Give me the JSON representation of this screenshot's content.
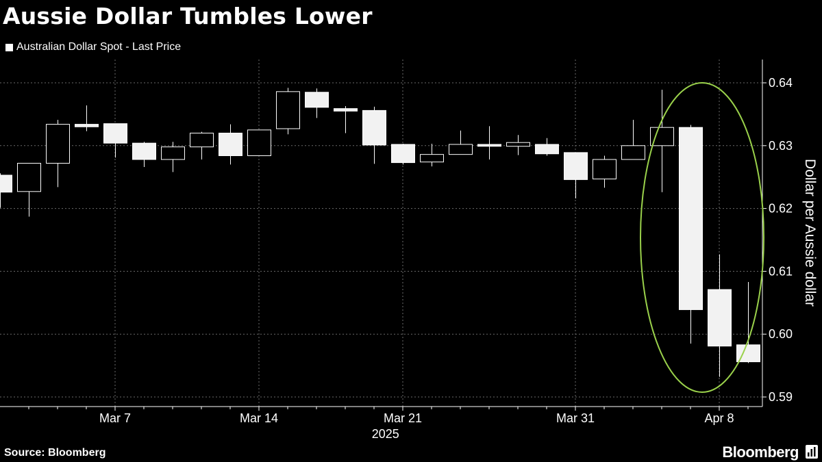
{
  "title": "Aussie Dollar Tumbles Lower",
  "source": "Source: Bloomberg",
  "brand": "Bloomberg",
  "colors": {
    "background": "#000000",
    "candle": "#ffffff",
    "grid": "#6b6b6b",
    "highlight": "#9ad14b"
  },
  "chart_data": {
    "type": "candlestick",
    "title": "Aussie Dollar Tumbles Lower",
    "legend": [
      "Australian Dollar Spot - Last Price"
    ],
    "ylabel": "Dollar per Aussie dollar",
    "ylim": [
      0.59,
      0.64
    ],
    "yticks": [
      "0.64",
      "0.63",
      "0.62",
      "0.61",
      "0.60",
      "0.59"
    ],
    "ytick_values": [
      0.64,
      0.63,
      0.62,
      0.61,
      0.6,
      0.59
    ],
    "xticks": [
      "Mar 7",
      "Mar 14",
      "Mar 21",
      "Mar 31",
      "Apr 8"
    ],
    "xtick_index": [
      4,
      9,
      14,
      20,
      25
    ],
    "xsub": "2025",
    "grid": true,
    "highlight": "ellipse around last three sessions",
    "candles": [
      {
        "o": 0.6253,
        "h": 0.6256,
        "l": 0.6201,
        "c": 0.6226
      },
      {
        "o": 0.6227,
        "h": 0.6272,
        "l": 0.6187,
        "c": 0.6272
      },
      {
        "o": 0.6272,
        "h": 0.6341,
        "l": 0.6234,
        "c": 0.6334
      },
      {
        "o": 0.6334,
        "h": 0.6364,
        "l": 0.6323,
        "c": 0.633
      },
      {
        "o": 0.6335,
        "h": 0.6335,
        "l": 0.6281,
        "c": 0.6304
      },
      {
        "o": 0.6304,
        "h": 0.6306,
        "l": 0.6266,
        "c": 0.6278
      },
      {
        "o": 0.6278,
        "h": 0.6306,
        "l": 0.6258,
        "c": 0.6298
      },
      {
        "o": 0.6298,
        "h": 0.6322,
        "l": 0.6278,
        "c": 0.632
      },
      {
        "o": 0.632,
        "h": 0.6334,
        "l": 0.627,
        "c": 0.6284
      },
      {
        "o": 0.6284,
        "h": 0.6325,
        "l": 0.6284,
        "c": 0.6325
      },
      {
        "o": 0.6327,
        "h": 0.6392,
        "l": 0.6318,
        "c": 0.6386
      },
      {
        "o": 0.6385,
        "h": 0.6391,
        "l": 0.6344,
        "c": 0.6361
      },
      {
        "o": 0.6359,
        "h": 0.6363,
        "l": 0.632,
        "c": 0.6355
      },
      {
        "o": 0.6356,
        "h": 0.6362,
        "l": 0.6271,
        "c": 0.6301
      },
      {
        "o": 0.6302,
        "h": 0.6303,
        "l": 0.627,
        "c": 0.6273
      },
      {
        "o": 0.6274,
        "h": 0.6303,
        "l": 0.6267,
        "c": 0.6286
      },
      {
        "o": 0.6286,
        "h": 0.6324,
        "l": 0.6286,
        "c": 0.6302
      },
      {
        "o": 0.6302,
        "h": 0.6331,
        "l": 0.6278,
        "c": 0.6299
      },
      {
        "o": 0.6299,
        "h": 0.6317,
        "l": 0.6285,
        "c": 0.6305
      },
      {
        "o": 0.6302,
        "h": 0.6312,
        "l": 0.6284,
        "c": 0.6287
      },
      {
        "o": 0.6289,
        "h": 0.6289,
        "l": 0.6216,
        "c": 0.6246
      },
      {
        "o": 0.6247,
        "h": 0.6284,
        "l": 0.6233,
        "c": 0.6278
      },
      {
        "o": 0.6278,
        "h": 0.6341,
        "l": 0.6278,
        "c": 0.63
      },
      {
        "o": 0.63,
        "h": 0.6389,
        "l": 0.6226,
        "c": 0.6329
      },
      {
        "o": 0.6329,
        "h": 0.6333,
        "l": 0.5985,
        "c": 0.6039
      },
      {
        "o": 0.6071,
        "h": 0.6127,
        "l": 0.5932,
        "c": 0.5981
      },
      {
        "o": 0.5983,
        "h": 0.6083,
        "l": 0.5954,
        "c": 0.5956
      }
    ]
  }
}
